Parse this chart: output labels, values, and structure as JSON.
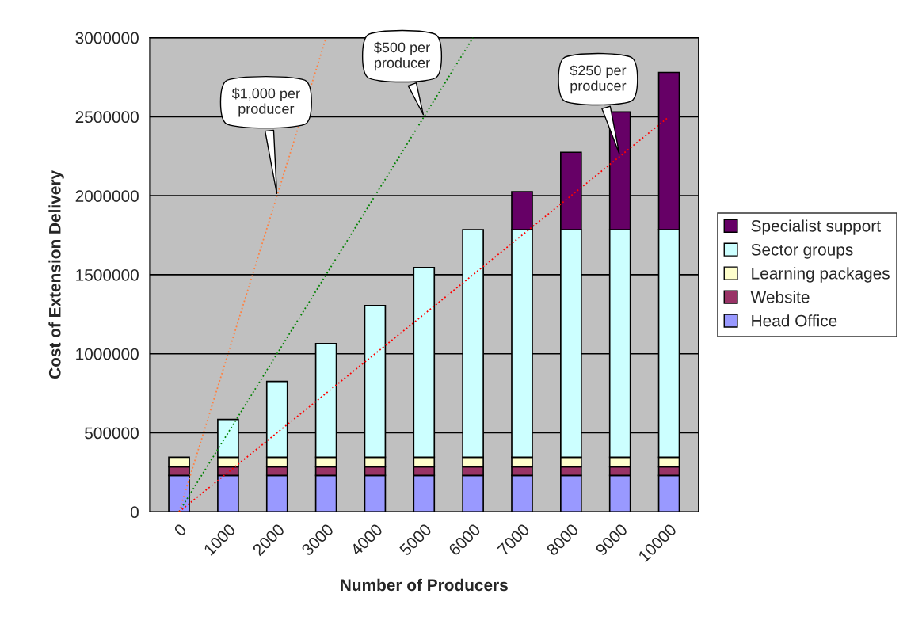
{
  "chart_data": {
    "type": "bar",
    "stacked": true,
    "xlabel": "Number of Producers",
    "ylabel": "Cost of Extension Delivery",
    "categories": [
      "0",
      "1000",
      "2000",
      "3000",
      "4000",
      "5000",
      "6000",
      "7000",
      "8000",
      "9000",
      "10000"
    ],
    "series": [
      {
        "name": "Head Office",
        "color": "#9999ff",
        "values": [
          230000,
          230000,
          230000,
          230000,
          230000,
          230000,
          230000,
          230000,
          230000,
          230000,
          230000
        ]
      },
      {
        "name": "Website",
        "color": "#993366",
        "values": [
          55000,
          55000,
          55000,
          55000,
          55000,
          55000,
          55000,
          55000,
          55000,
          55000,
          55000
        ]
      },
      {
        "name": "Learning packages",
        "color": "#ffffcc",
        "values": [
          60000,
          60000,
          60000,
          60000,
          60000,
          60000,
          60000,
          60000,
          60000,
          60000,
          60000
        ]
      },
      {
        "name": "Sector groups",
        "color": "#ccffff",
        "values": [
          null,
          240000,
          480000,
          720000,
          960000,
          1200000,
          1440000,
          1440000,
          1440000,
          1440000,
          1440000
        ]
      },
      {
        "name": "Specialist support",
        "color": "#660066",
        "values": [
          null,
          null,
          null,
          null,
          null,
          null,
          null,
          240000,
          490000,
          745000,
          995000
        ]
      },
      {
        "type": "line",
        "color": "#ff8040",
        "line_style": "dotted",
        "marker": "none",
        "values": [
          0,
          1000000,
          2000000,
          3000000,
          null,
          null,
          null,
          null,
          null,
          null,
          null
        ]
      },
      {
        "type": "line",
        "color": "#008000",
        "line_style": "dotted",
        "marker": "none",
        "values": [
          0,
          500000,
          1000000,
          1500000,
          2000000,
          2500000,
          3000000,
          null,
          null,
          null,
          null
        ]
      },
      {
        "type": "line",
        "color": "#ff0000",
        "line_style": "dotted",
        "marker": "none",
        "values": [
          0,
          250000,
          500000,
          750000,
          1000000,
          1250000,
          1500000,
          1750000,
          2000000,
          2250000,
          2500000
        ]
      }
    ],
    "ylim": [
      0,
      3000000
    ],
    "yticks": [
      0,
      500000,
      1000000,
      1500000,
      2000000,
      2500000,
      3000000
    ],
    "grid": "y",
    "legend": "right",
    "annotations": [
      {
        "text": "$1,000 per\nproducer",
        "x": "2000",
        "y": 2000000
      },
      {
        "text": "$500 per\nproducer",
        "x": "5000",
        "y": 2500000
      },
      {
        "text": "$250 per\nproducer",
        "x": "9000",
        "y": 2250000
      }
    ]
  }
}
